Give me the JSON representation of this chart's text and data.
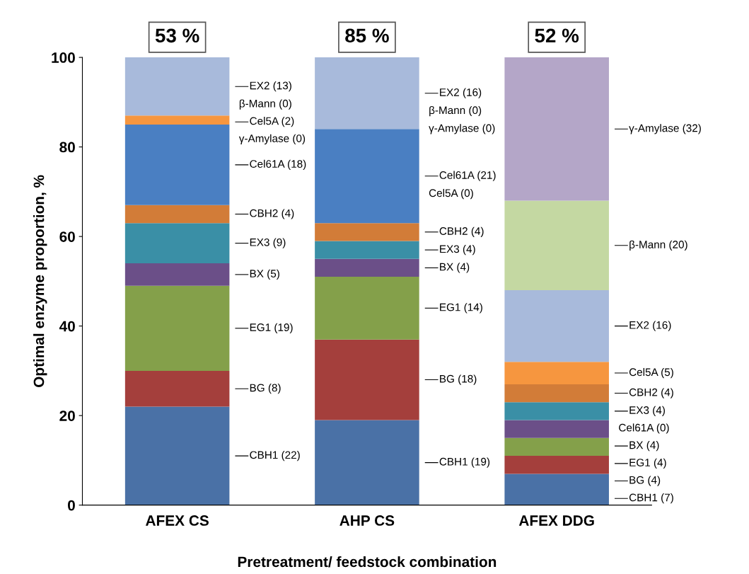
{
  "chart_data": {
    "type": "bar",
    "stacked": true,
    "xlabel": "Pretreatment/ feedstock combination",
    "ylabel": "Optimal enzyme proportion, %",
    "categories": [
      "AFEX CS",
      "AHP CS",
      "AFEX DDG"
    ],
    "ylim": [
      0,
      100
    ],
    "yticks": [
      0,
      20,
      40,
      60,
      80,
      100
    ],
    "grid": false,
    "annotations": [
      "53 %",
      "85 %",
      "52 %"
    ],
    "series": [
      {
        "name": "CBH1",
        "color": "#4a71a6",
        "values": [
          22,
          19,
          7
        ],
        "value_labels": [
          "(22)",
          "(19)",
          "(7)"
        ]
      },
      {
        "name": "BG",
        "color": "#a43f3c",
        "values": [
          8,
          18,
          4
        ],
        "value_labels": [
          "(8)",
          "(18)",
          "(4)"
        ]
      },
      {
        "name": "EG1",
        "color": "#84a04a",
        "values": [
          19,
          14,
          4
        ],
        "value_labels": [
          "(19)",
          "(14)",
          "(4)"
        ]
      },
      {
        "name": "BX",
        "color": "#6b4f88",
        "values": [
          5,
          4,
          4
        ],
        "value_labels": [
          "(5)",
          "(4)",
          "(4)"
        ]
      },
      {
        "name": "EX3",
        "color": "#3a8fa6",
        "values": [
          9,
          4,
          4
        ],
        "value_labels": [
          "(9)",
          "(4)",
          "(4)"
        ]
      },
      {
        "name": "CBH2",
        "color": "#d27c38",
        "values": [
          4,
          4,
          4
        ],
        "value_labels": [
          "(4)",
          "(4)",
          "(4)"
        ]
      },
      {
        "name": "Cel61A",
        "color": "#4a7fc2",
        "values": [
          18,
          21,
          0
        ],
        "value_labels": [
          "(18)",
          "(21)",
          "(0)"
        ]
      },
      {
        "name": "Cel5A",
        "color": "#f6963f",
        "values": [
          2,
          0,
          5
        ],
        "value_labels": [
          "(2)",
          "(0)",
          "(5)"
        ]
      },
      {
        "name": "EX2",
        "color": "#a8badb",
        "values": [
          13,
          16,
          16
        ],
        "value_labels": [
          "(13)",
          "(16)",
          "(16)"
        ]
      },
      {
        "name": "β-Mann",
        "color": "#c4d8a2",
        "values": [
          0,
          0,
          20
        ],
        "value_labels": [
          "(0)",
          "(0)",
          "(20)"
        ]
      },
      {
        "name": "γ-Amylase",
        "color": "#b4a6c8",
        "values": [
          0,
          0,
          32
        ],
        "value_labels": [
          "(0)",
          "(0)",
          "(32)"
        ]
      }
    ]
  }
}
